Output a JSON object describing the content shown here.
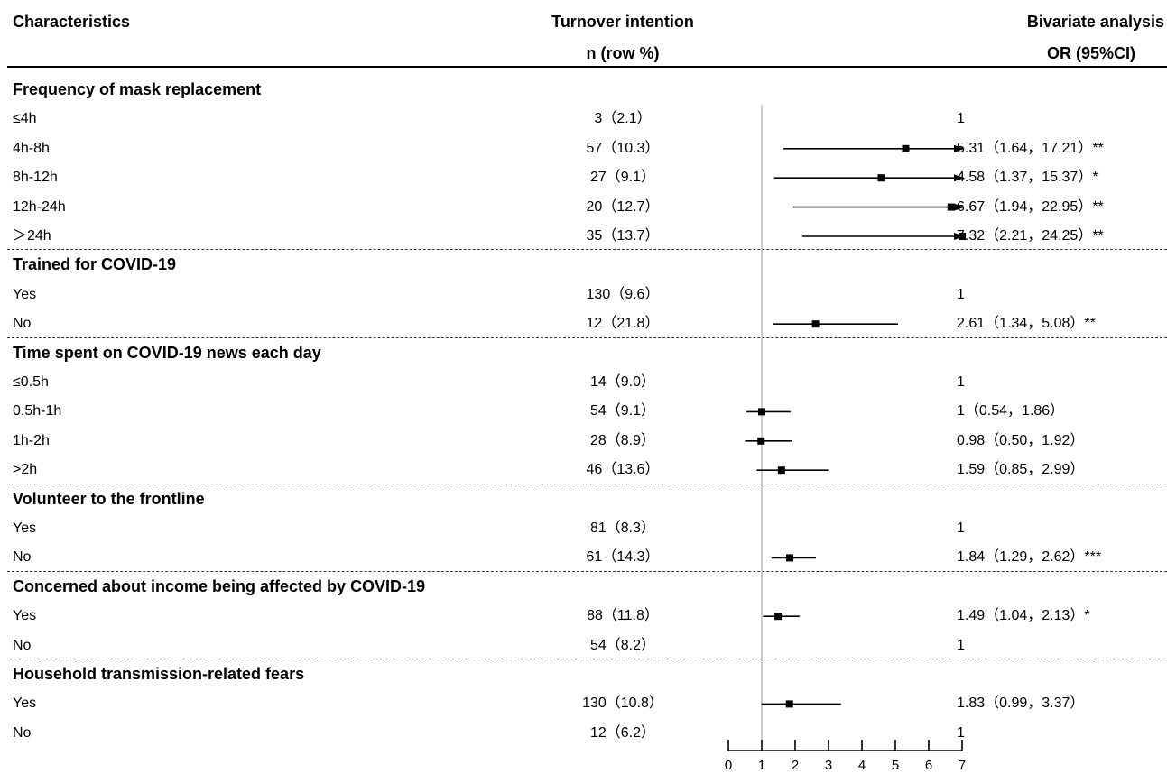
{
  "headers": {
    "characteristics": "Characteristics",
    "turnover": "Turnover intention",
    "n_row": "n (row %)",
    "bivariate": "Bivariate analysis",
    "or_ci": "OR (95%CI)"
  },
  "chart_data": {
    "type": "forest",
    "xlim": [
      0,
      7
    ],
    "ticks": [
      0,
      1,
      2,
      3,
      4,
      5,
      6,
      7
    ],
    "reference_line": 1,
    "sections": [
      {
        "title": "Frequency of mask replacement",
        "rows": [
          {
            "label": "≤4h",
            "n": "3（2.1）",
            "or_text": "1",
            "or": null,
            "lo": null,
            "hi": null
          },
          {
            "label": "4h-8h",
            "n": "57（10.3）",
            "or_text": "5.31（1.64，17.21）**",
            "or": 5.31,
            "lo": 1.64,
            "hi": 17.21
          },
          {
            "label": "8h-12h",
            "n": "27（9.1）",
            "or_text": "4.58（1.37，15.37）*",
            "or": 4.58,
            "lo": 1.37,
            "hi": 15.37
          },
          {
            "label": "12h-24h",
            "n": "20（12.7）",
            "or_text": "6.67（1.94，22.95）**",
            "or": 6.67,
            "lo": 1.94,
            "hi": 22.95
          },
          {
            "label": "＞24h",
            "n": "35（13.7）",
            "or_text": "7.32（2.21，24.25）**",
            "or": 7.32,
            "lo": 2.21,
            "hi": 24.25
          }
        ]
      },
      {
        "title": "Trained for COVID-19",
        "rows": [
          {
            "label": "Yes",
            "n": "130（9.6）",
            "or_text": "1",
            "or": null,
            "lo": null,
            "hi": null
          },
          {
            "label": "No",
            "n": "12（21.8）",
            "or_text": "2.61（1.34，5.08）**",
            "or": 2.61,
            "lo": 1.34,
            "hi": 5.08
          }
        ]
      },
      {
        "title": "Time spent on COVID-19 news each day",
        "rows": [
          {
            "label": "≤0.5h",
            "n": "14（9.0）",
            "or_text": "1",
            "or": null,
            "lo": null,
            "hi": null
          },
          {
            "label": "0.5h-1h",
            "n": "54（9.1）",
            "or_text": "1（0.54，1.86）",
            "or": 1,
            "lo": 0.54,
            "hi": 1.86
          },
          {
            "label": "1h-2h",
            "n": "28（8.9）",
            "or_text": "0.98（0.50，1.92）",
            "or": 0.98,
            "lo": 0.5,
            "hi": 1.92
          },
          {
            "label": ">2h",
            "n": "46（13.6）",
            "or_text": "1.59（0.85，2.99）",
            "or": 1.59,
            "lo": 0.85,
            "hi": 2.99
          }
        ]
      },
      {
        "title": "Volunteer to the frontline",
        "rows": [
          {
            "label": "Yes",
            "n": "81（8.3）",
            "or_text": "1",
            "or": null,
            "lo": null,
            "hi": null
          },
          {
            "label": "No",
            "n": "61（14.3）",
            "or_text": "1.84（1.29，2.62）***",
            "or": 1.84,
            "lo": 1.29,
            "hi": 2.62
          }
        ]
      },
      {
        "title": "Concerned about income being affected by COVID-19",
        "rows": [
          {
            "label": "Yes",
            "n": "88（11.8）",
            "or_text": "1.49（1.04，2.13）*",
            "or": 1.49,
            "lo": 1.04,
            "hi": 2.13
          },
          {
            "label": "No",
            "n": "54（8.2）",
            "or_text": "1",
            "or": null,
            "lo": null,
            "hi": null
          }
        ]
      },
      {
        "title": "Household transmission-related fears",
        "rows": [
          {
            "label": "Yes",
            "n": "130（10.8）",
            "or_text": "1.83（0.99，3.37）",
            "or": 1.83,
            "lo": 0.99,
            "hi": 3.37
          },
          {
            "label": "No",
            "n": "12（6.2）",
            "or_text": "1",
            "or": null,
            "lo": null,
            "hi": null
          }
        ]
      }
    ]
  }
}
